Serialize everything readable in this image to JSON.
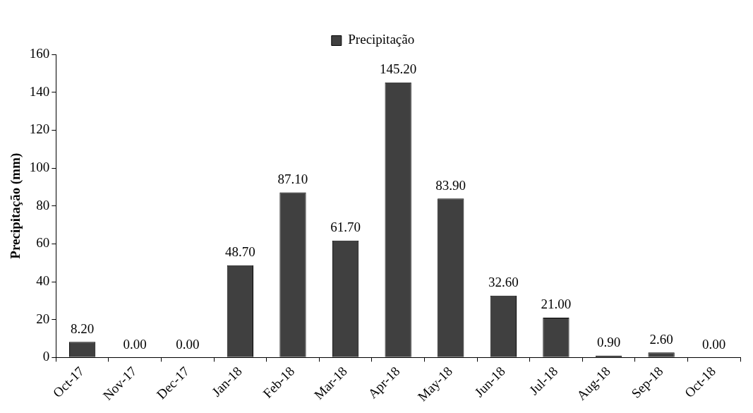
{
  "chart_data": {
    "type": "bar",
    "ylabel": "Precipitação (mm)",
    "categories": [
      "Oct-17",
      "Nov-17",
      "Dec-17",
      "Jan-18",
      "Feb-18",
      "Mar-18",
      "Apr-18",
      "May-18",
      "Jun-18",
      "Jul-18",
      "Aug-18",
      "Sep-18",
      "Oct-18"
    ],
    "series": [
      {
        "name": "Precipitação",
        "color": "#404040",
        "values": [
          8.2,
          0,
          0,
          48.7,
          87.1,
          61.7,
          145.2,
          83.9,
          32.6,
          21.0,
          0.9,
          2.6,
          0
        ],
        "value_labels": [
          "8.20",
          "0.00",
          "0.00",
          "48.70",
          "87.10",
          "61.70",
          "145.20",
          "83.90",
          "32.60",
          "21.00",
          "0.90",
          "2.60",
          "0.00"
        ]
      }
    ],
    "ylim": [
      0,
      160
    ],
    "yticks": [
      0,
      20,
      40,
      60,
      80,
      100,
      120,
      140,
      160
    ],
    "grid": false,
    "legend": "top"
  }
}
